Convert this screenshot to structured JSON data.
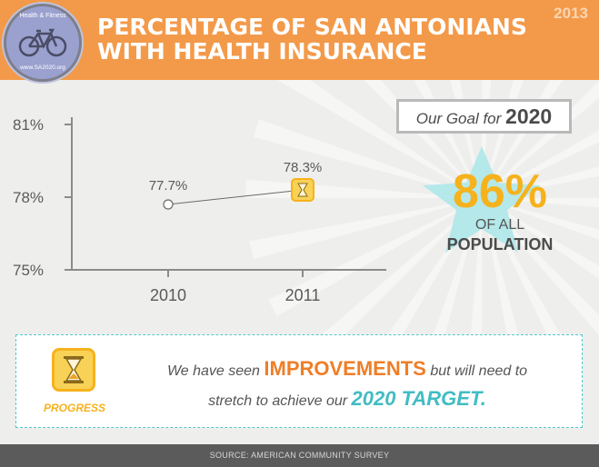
{
  "header": {
    "year": "2013",
    "title_line1": "PERCENTAGE OF SAN ANTONIANS",
    "title_line2": "WITH HEALTH INSURANCE",
    "logo_top": "Health & Fitness",
    "logo_bottom": "www.SA2020.org"
  },
  "chart_data": {
    "type": "line",
    "categories": [
      "2010",
      "2011"
    ],
    "series": [
      {
        "values": [
          77.7,
          78.3
        ]
      }
    ],
    "data_labels": [
      "77.7%",
      "78.3%"
    ],
    "y_ticks": [
      "75%",
      "78%",
      "81%"
    ],
    "ylim": [
      75,
      81
    ],
    "grid": false
  },
  "goal": {
    "prefix": "Our Goal for",
    "year": "2020",
    "value": "86%",
    "of_all": "OF ALL",
    "population": "POPULATION"
  },
  "progress": {
    "label": "PROGRESS",
    "msg_part1": "We have seen",
    "highlight1": "IMPROVEMENTS",
    "msg_part2": "but will need to",
    "msg_part3": "stretch to achieve our",
    "highlight2": "2020 TARGET."
  },
  "footer": {
    "source": "SOURCE: AMERICAN COMMUNITY SURVEY"
  },
  "colors": {
    "header": "#f39a4a",
    "accent_yellow": "#f6b21c",
    "accent_orange": "#ef7e27",
    "accent_teal": "#42bcc2",
    "footer": "#5b5b5b"
  }
}
